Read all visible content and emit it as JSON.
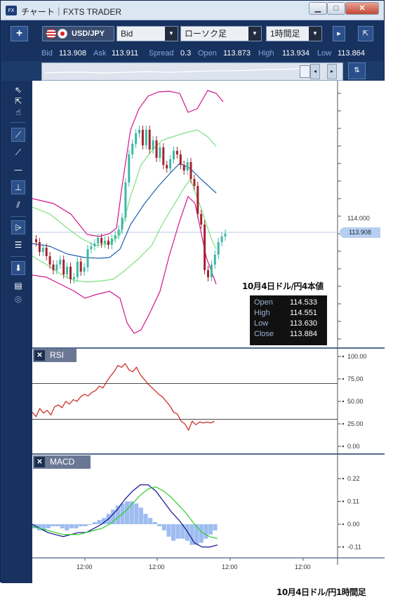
{
  "window": {
    "app_icon": "FX",
    "title": "チャート｜FXTS TRADER",
    "minimize": "▁",
    "maximize": "□",
    "close": "✕"
  },
  "toolbar": {
    "add_label": "+",
    "symbol": "USD/JPY",
    "price_type": "Bid",
    "chart_type": "ローソク足",
    "timeframe": "1時間足",
    "dropdown_arrow": "▼",
    "extra_icon": "▸",
    "expand_icon": "⇱"
  },
  "quote": {
    "bid_label": "Bid",
    "bid": "113.908",
    "ask_label": "Ask",
    "ask": "113.911",
    "spread_label": "Spread",
    "spread": "0.3",
    "open_label": "Open",
    "open": "113.873",
    "high_label": "High",
    "high": "113.934",
    "low_label": "Low",
    "low": "113.864"
  },
  "slider": {
    "left": "◂",
    "right": "▸",
    "icon": "⇅"
  },
  "tools": [
    "⇖",
    "⇱",
    "☝",
    "⟋",
    "⟋",
    "—",
    "⊥",
    "⫽",
    "⩥",
    "☰",
    "⬇",
    "▤",
    "◎"
  ],
  "chart_info": {
    "title": "10月4日ドル/円4本値",
    "rows": [
      {
        "label": "Open",
        "value": "114.533"
      },
      {
        "label": "High",
        "value": "114.551"
      },
      {
        "label": "Low",
        "value": "113.630"
      },
      {
        "label": "Close",
        "value": "113.884"
      }
    ]
  },
  "price_axis": {
    "label_114": "114.000",
    "current": "113.908"
  },
  "rsi": {
    "label": "RSI",
    "close": "✕",
    "ticks": [
      "100.00",
      "75.00",
      "50.00",
      "25.00",
      "0.00"
    ]
  },
  "macd": {
    "label": "MACD",
    "close": "✕",
    "ticks": [
      "0.22",
      "0.11",
      "0.00",
      "-0.11"
    ]
  },
  "x_axis": {
    "ticks": [
      "12:00",
      "12:00",
      "12:00",
      "12:00"
    ]
  },
  "caption": "10月4日ドル/円1時間足",
  "colors": {
    "frame": "#1c3a6a",
    "up": "#3cb9a5",
    "down": "#a3232e",
    "bb_outer": "#d2168a",
    "bb_inner": "#7fe07f",
    "bb_mid": "#2060b0",
    "rsi": "#c8221c",
    "macd": "#11118e",
    "signal": "#2ecc2e",
    "hist": "#9ebcf0"
  }
}
